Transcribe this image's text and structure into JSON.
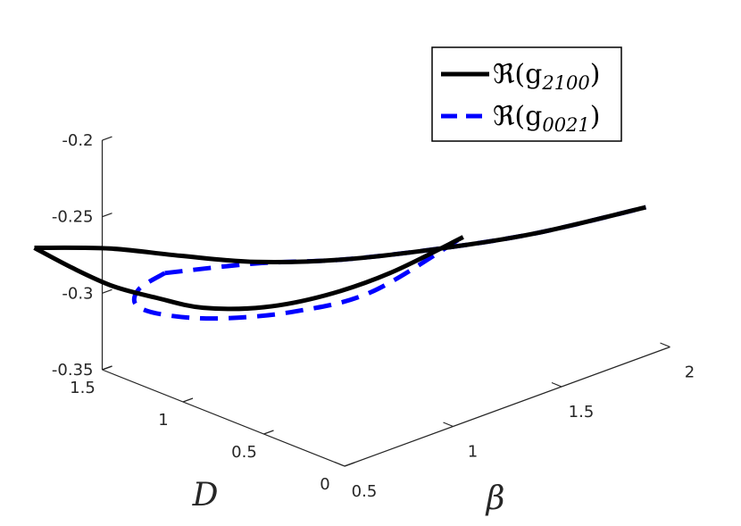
{
  "chart_data": {
    "type": "line",
    "projection": "3d",
    "xlabel": "β",
    "ylabel": "D",
    "zlabel": "",
    "xlim": [
      0.5,
      2
    ],
    "ylim": [
      0,
      1.5
    ],
    "zlim": [
      -0.35,
      -0.2
    ],
    "xticks": [
      "0.5",
      "1",
      "1.5",
      "2"
    ],
    "yticks": [
      "0",
      "0.5",
      "1",
      "1.5"
    ],
    "zticks": [
      "-0.2",
      "-0.25",
      "-0.3",
      "-0.35"
    ],
    "grid": false,
    "legend_position": "top-right",
    "series": [
      {
        "name_prefix": "ℜ(g",
        "name_sub": "2100",
        "name_suffix": ")",
        "color": "#000000",
        "style": "solid",
        "branches": [
          {
            "x": [
              0.15,
              0.4,
              0.6,
              0.8,
              1.05,
              1.35,
              1.65,
              2.0
            ],
            "y": [
              1.45,
              1.32,
              1.15,
              0.95,
              0.75,
              0.55,
              0.35,
              0.15
            ],
            "z": [
              -0.25,
              -0.258,
              -0.266,
              -0.272,
              -0.275,
              -0.275,
              -0.272,
              -0.265
            ]
          },
          {
            "x": [
              0.15,
              0.35,
              0.55,
              0.75,
              0.95,
              1.2,
              1.45,
              1.7,
              2.0
            ],
            "y": [
              1.45,
              1.48,
              1.5,
              1.5,
              1.48,
              1.44,
              1.39,
              1.33,
              1.28
            ],
            "z": [
              -0.25,
              -0.275,
              -0.298,
              -0.316,
              -0.332,
              -0.343,
              -0.346,
              -0.342,
              -0.332
            ]
          }
        ]
      },
      {
        "name_prefix": "ℜ(g",
        "name_sub": "0021",
        "name_suffix": ")",
        "color": "#0000ff",
        "style": "dashed",
        "branches": [
          {
            "x": [
              0.55,
              0.8,
              1.05,
              1.35,
              1.65,
              2.0
            ],
            "y": [
              1.18,
              0.95,
              0.75,
              0.55,
              0.35,
              0.15
            ],
            "z": [
              -0.276,
              -0.273,
              -0.275,
              -0.275,
              -0.272,
              -0.265
            ]
          },
          {
            "x": [
              0.55,
              0.52,
              0.6,
              0.8,
              1.05,
              1.35,
              1.65,
              2.0
            ],
            "y": [
              1.18,
              1.3,
              1.42,
              1.5,
              1.5,
              1.45,
              1.38,
              1.3
            ],
            "z": [
              -0.276,
              -0.29,
              -0.31,
              -0.33,
              -0.345,
              -0.354,
              -0.354,
              -0.334
            ]
          }
        ]
      }
    ]
  }
}
